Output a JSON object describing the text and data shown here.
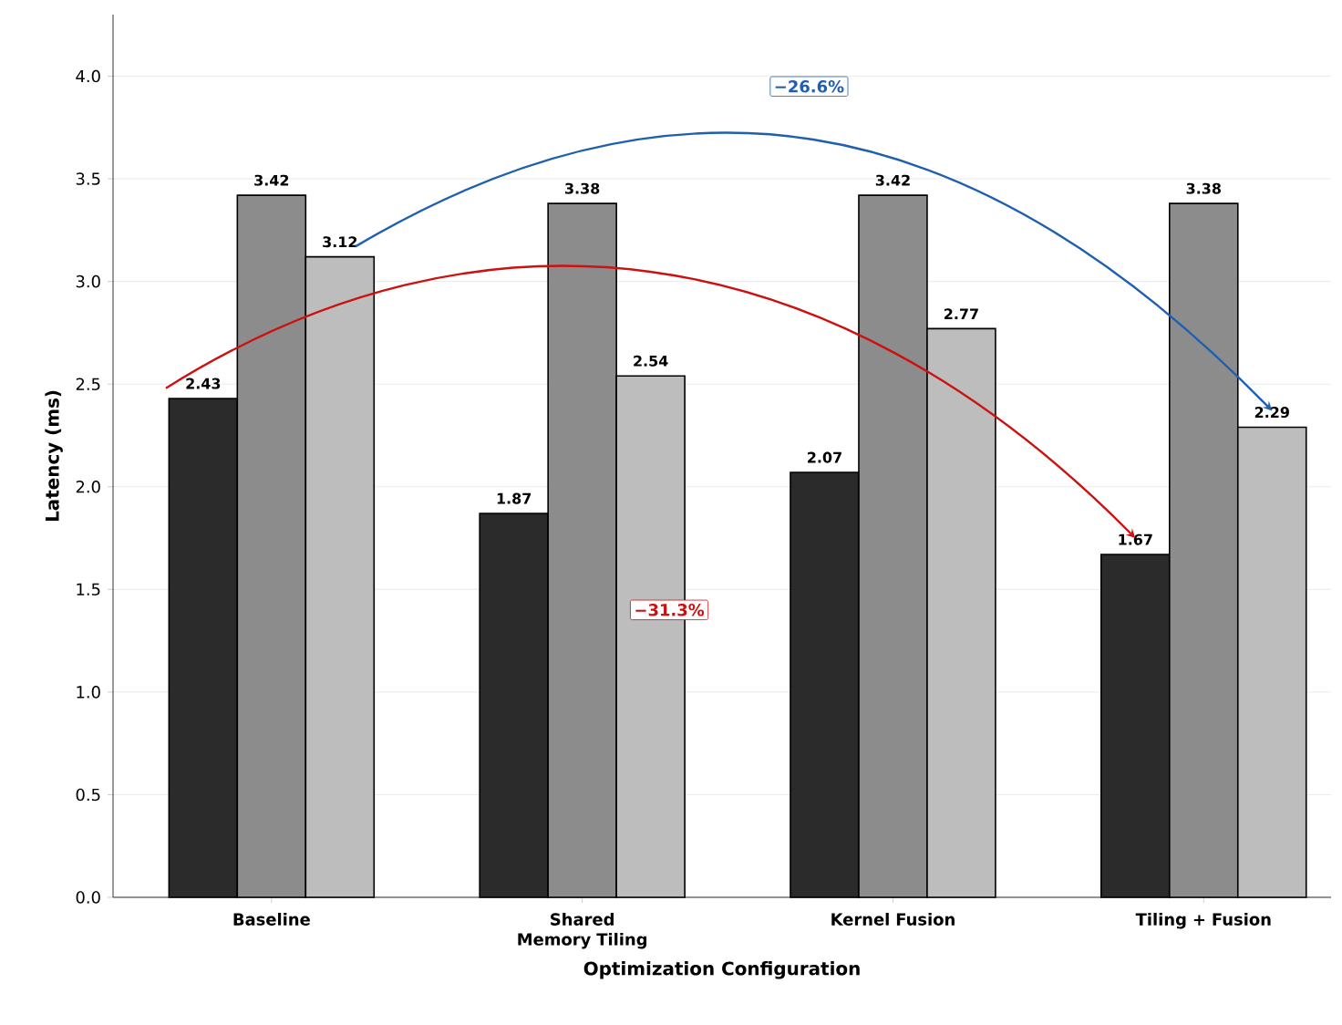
{
  "chart_data": {
    "type": "bar",
    "xlabel": "Optimization Configuration",
    "ylabel": "Latency (ms)",
    "categories": [
      "Baseline",
      "Shared Memory Tiling",
      "Kernel Fusion",
      "Tiling + Fusion"
    ],
    "series": [
      {
        "color": "#2b2b2b",
        "values": [
          2.43,
          1.87,
          2.07,
          1.67
        ]
      },
      {
        "color": "#8c8c8c",
        "values": [
          3.42,
          3.38,
          3.42,
          3.38
        ]
      },
      {
        "color": "#bdbdbd",
        "values": [
          3.12,
          2.54,
          2.77,
          2.29
        ]
      }
    ],
    "ylim": [
      0,
      4.3
    ],
    "yticks": [
      {
        "value": 0,
        "label": "0.0"
      },
      0.5,
      {
        "value": 1,
        "label": "1.0"
      },
      1.5,
      {
        "value": 2,
        "label": "2.0"
      },
      2.5,
      {
        "value": 3,
        "label": "3.0"
      },
      3.5,
      {
        "value": 4,
        "label": "4.0"
      }
    ],
    "grid": "y",
    "data_labels": true,
    "annotations": [
      "−26.6%",
      "−31.3%"
    ]
  }
}
